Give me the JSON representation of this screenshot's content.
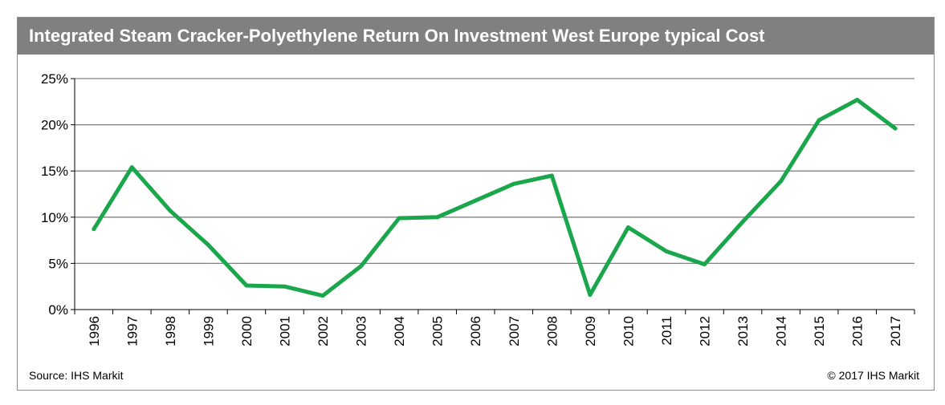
{
  "title": "Integrated Steam Cracker-Polyethylene Return On Investment West Europe typical Cost",
  "source": "Source: IHS Markit",
  "copyright": "© 2017 IHS Markit",
  "colors": {
    "header_bg": "#808080",
    "line": "#1aa64b",
    "grid": "#808080"
  },
  "chart_data": {
    "type": "line",
    "title": "Integrated Steam Cracker-Polyethylene Return On Investment West Europe typical Cost",
    "xlabel": "",
    "ylabel": "",
    "ylim": [
      0,
      25
    ],
    "y_ticks": [
      "0%",
      "5%",
      "10%",
      "15%",
      "20%",
      "25%"
    ],
    "y_tick_values": [
      0,
      5,
      10,
      15,
      20,
      25
    ],
    "grid": true,
    "legend": "none",
    "categories": [
      "1996",
      "1997",
      "1998",
      "1999",
      "2000",
      "2001",
      "2002",
      "2003",
      "2004",
      "2005",
      "2006",
      "2007",
      "2008",
      "2009",
      "2010",
      "2011",
      "2012",
      "2013",
      "2014",
      "2015",
      "2016",
      "2017"
    ],
    "series": [
      {
        "values": [
          8.7,
          15.4,
          10.7,
          7.0,
          2.6,
          2.5,
          1.5,
          4.7,
          9.9,
          10.0,
          11.8,
          13.6,
          14.5,
          1.6,
          8.9,
          6.3,
          4.9,
          9.5,
          13.9,
          20.5,
          22.7,
          19.6
        ]
      }
    ]
  }
}
